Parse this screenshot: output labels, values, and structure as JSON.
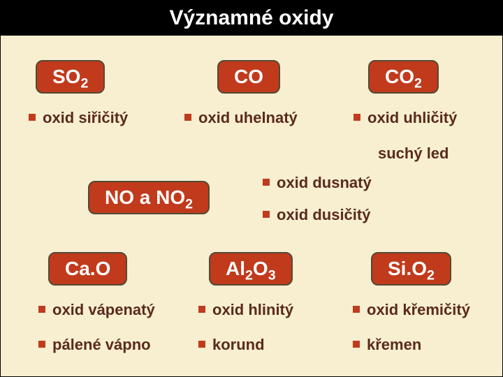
{
  "title": "Významné oxidy",
  "row1": {
    "so2": {
      "formula": "SO<sub>2</sub>",
      "label": "oxid siřičitý"
    },
    "co": {
      "formula": "CO",
      "label": "oxid uhelnatý"
    },
    "co2": {
      "formula": "CO<sub>2</sub>",
      "label": "oxid uhličitý",
      "extra": "suchý led"
    }
  },
  "no_group": {
    "formula": "NO a NO<sub>2</sub>",
    "label1": "oxid dusnatý",
    "label2": "oxid dusičitý"
  },
  "row3": {
    "cao": {
      "formula": "Ca.O",
      "label1": "oxid vápenatý",
      "label2": "pálené vápno"
    },
    "al": {
      "formula": "Al<sub>2</sub>O<sub>3</sub>",
      "label1": "oxid hlinitý",
      "label2": "korund"
    },
    "si": {
      "formula": "Si.O<sub>2</sub>",
      "label1": "oxid křemičitý",
      "label2": "křemen"
    }
  },
  "colors": {
    "page_bg": "#f7efd0",
    "title_bg": "#000000",
    "title_fg": "#ffffff",
    "badge_bg": "#c13a1c",
    "badge_border": "#524a36",
    "badge_fg": "#ffffff",
    "text_fg": "#5a2a1e",
    "bullet": "#c13a1c"
  }
}
